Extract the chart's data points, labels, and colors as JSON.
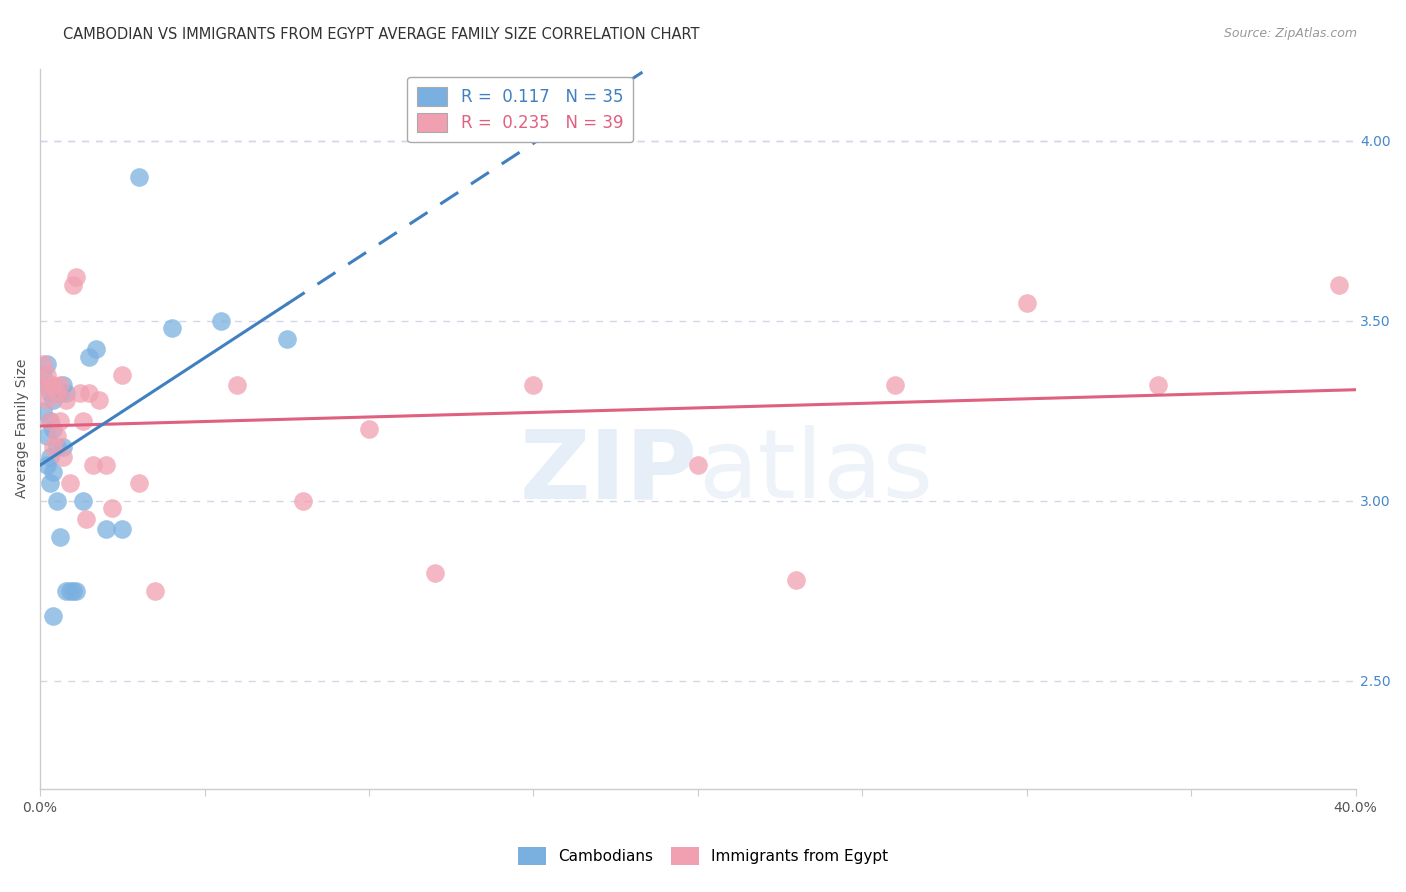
{
  "title": "CAMBODIAN VS IMMIGRANTS FROM EGYPT AVERAGE FAMILY SIZE CORRELATION CHART",
  "source": "Source: ZipAtlas.com",
  "ylabel": "Average Family Size",
  "yticks_right": [
    2.5,
    3.0,
    3.5,
    4.0
  ],
  "xlim": [
    0.0,
    0.4
  ],
  "ylim": [
    2.2,
    4.2
  ],
  "watermark": "ZIPatlas",
  "cambodian_x": [
    0.001,
    0.001,
    0.002,
    0.002,
    0.002,
    0.002,
    0.003,
    0.003,
    0.003,
    0.003,
    0.004,
    0.004,
    0.004,
    0.004,
    0.005,
    0.005,
    0.005,
    0.006,
    0.006,
    0.007,
    0.007,
    0.008,
    0.008,
    0.009,
    0.01,
    0.011,
    0.013,
    0.015,
    0.017,
    0.02,
    0.025,
    0.03,
    0.04,
    0.055,
    0.075
  ],
  "cambodian_y": [
    3.35,
    3.25,
    3.38,
    3.32,
    3.18,
    3.1,
    3.3,
    3.22,
    3.12,
    3.05,
    3.28,
    3.2,
    3.08,
    2.68,
    3.3,
    3.15,
    3.0,
    3.3,
    2.9,
    3.32,
    3.15,
    3.3,
    2.75,
    2.75,
    2.75,
    2.75,
    3.0,
    3.4,
    3.42,
    2.92,
    2.92,
    3.9,
    3.48,
    3.5,
    3.45
  ],
  "egypt_x": [
    0.001,
    0.001,
    0.002,
    0.002,
    0.003,
    0.003,
    0.004,
    0.004,
    0.005,
    0.005,
    0.006,
    0.006,
    0.007,
    0.008,
    0.009,
    0.01,
    0.011,
    0.012,
    0.013,
    0.014,
    0.015,
    0.016,
    0.018,
    0.02,
    0.022,
    0.025,
    0.03,
    0.035,
    0.06,
    0.08,
    0.1,
    0.12,
    0.15,
    0.2,
    0.23,
    0.26,
    0.3,
    0.34,
    0.395
  ],
  "egypt_y": [
    3.38,
    3.32,
    3.35,
    3.28,
    3.32,
    3.22,
    3.32,
    3.15,
    3.3,
    3.18,
    3.32,
    3.22,
    3.12,
    3.28,
    3.05,
    3.6,
    3.62,
    3.3,
    3.22,
    2.95,
    3.3,
    3.1,
    3.28,
    3.1,
    2.98,
    3.35,
    3.05,
    2.75,
    3.32,
    3.0,
    3.2,
    2.8,
    3.32,
    3.1,
    2.78,
    3.32,
    3.55,
    3.32,
    3.6
  ],
  "cambodian_color": "#7ab0e0",
  "egypt_color": "#f0a0b0",
  "trend_cambodian_color": "#4080c0",
  "trend_egypt_color": "#e06080",
  "background_color": "#ffffff",
  "grid_color": "#d0d8e8",
  "title_fontsize": 10.5,
  "source_fontsize": 9,
  "axis_label_fontsize": 10,
  "tick_fontsize": 10,
  "legend_fontsize": 12
}
